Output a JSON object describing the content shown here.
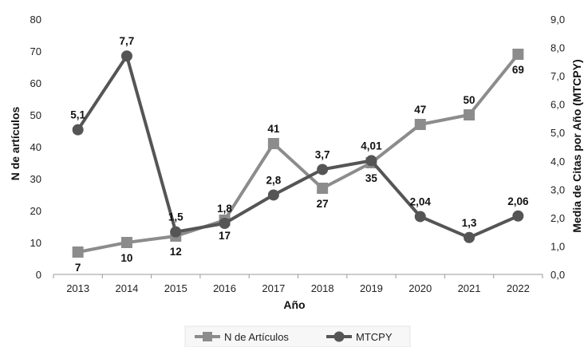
{
  "chart_data": {
    "type": "line",
    "title": "",
    "xlabel": "Año",
    "ylabel": "N de artículos",
    "y2label": "Media de Citas por Año (MTCPY)",
    "categories": [
      "2013",
      "2014",
      "2015",
      "2016",
      "2017",
      "2018",
      "2019",
      "2020",
      "2021",
      "2022"
    ],
    "ylim": [
      0,
      80
    ],
    "y_ticks": [
      "0",
      "10",
      "20",
      "30",
      "40",
      "50",
      "60",
      "70",
      "80"
    ],
    "y2lim": [
      0,
      9
    ],
    "y2_ticks": [
      "0,0",
      "1,0",
      "2,0",
      "3,0",
      "4,0",
      "5,0",
      "6,0",
      "7,0",
      "8,0",
      "9,0"
    ],
    "grid": false,
    "legend_position": "bottom",
    "series": [
      {
        "name": "N de Artículos",
        "axis": "left",
        "marker": "square",
        "color": "#8c8c8c",
        "values": [
          7,
          10,
          12,
          17,
          41,
          27,
          35,
          47,
          50,
          69
        ],
        "labels": [
          "7",
          "10",
          "12",
          "17",
          "41",
          "27",
          "35",
          "47",
          "50",
          "69"
        ]
      },
      {
        "name": "MTCPY",
        "axis": "right",
        "marker": "circle",
        "color": "#555555",
        "values": [
          5.1,
          7.7,
          1.5,
          1.8,
          2.8,
          3.7,
          4.01,
          2.04,
          1.3,
          2.06
        ],
        "labels": [
          "5,1",
          "7,7",
          "1,5",
          "1,8",
          "2,8",
          "3,7",
          "4,01",
          "2,04",
          "1,3",
          "2,06"
        ]
      }
    ]
  }
}
